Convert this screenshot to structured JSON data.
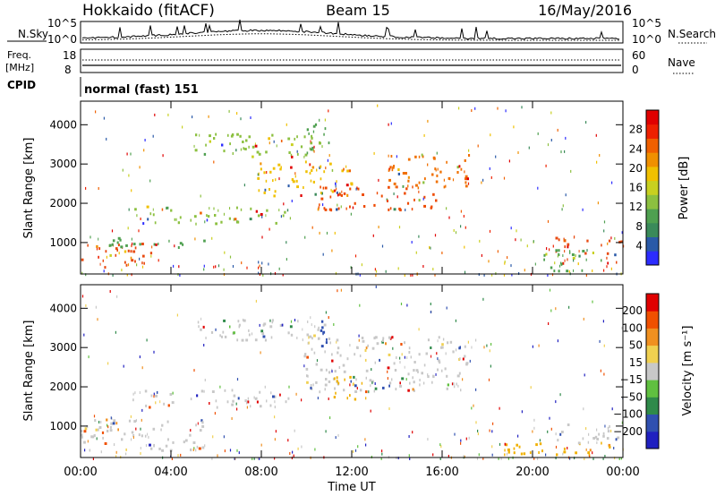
{
  "header": {
    "station": "Hokkaido (fitACF)",
    "beam": "Beam 15",
    "date": "16/May/2016"
  },
  "noise_panel": {
    "left_label": "N.Sky",
    "right_label": "N.Search",
    "left_tick_top": "10^5",
    "left_tick_bottom": "10^0",
    "right_tick_top": "10^5",
    "right_tick_bottom": "10^0"
  },
  "freq_panel": {
    "left_label": "Freq.",
    "left_unit": "[MHz]",
    "right_label": "Nave",
    "left_tick_top": "18",
    "left_tick_bottom": "8",
    "right_tick_top": "60",
    "right_tick_bottom": "0"
  },
  "cpid_panel": {
    "label": "CPID",
    "value": "normal (fast) 151"
  },
  "chart_data": [
    {
      "type": "heatmap",
      "ylabel": "Slant Range [km]",
      "xlabel": "",
      "y_ticks": [
        "1000",
        "2000",
        "3000",
        "4000"
      ],
      "ylim": [
        200,
        4600
      ],
      "xlim": [
        0,
        24
      ],
      "colorbar": {
        "label": "Power [dB]",
        "ticks": [
          "4",
          "8",
          "12",
          "16",
          "20",
          "24",
          "28"
        ],
        "colors": [
          "#2c2cff",
          "#2a5aa8",
          "#3a8a5a",
          "#4fa050",
          "#8cc040",
          "#c8d020",
          "#f0c000",
          "#f09000",
          "#f06000",
          "#ee2000",
          "#e00000"
        ]
      },
      "bands": [
        {
          "t0": 0.0,
          "t1": 3.4,
          "r0": 400,
          "r1": 1000,
          "color": "#e84a10"
        },
        {
          "t0": 0.0,
          "t1": 5.6,
          "r0": 900,
          "r1": 1150,
          "color": "#4fa050"
        },
        {
          "t0": 2.2,
          "t1": 9.2,
          "r0": 1500,
          "r1": 1950,
          "color": "#8cc040"
        },
        {
          "t0": 5.0,
          "t1": 10.8,
          "r0": 3200,
          "r1": 3800,
          "color": "#8cc040"
        },
        {
          "t0": 10.4,
          "t1": 15.8,
          "r0": 1850,
          "r1": 2500,
          "color": "#ee4a00"
        },
        {
          "t0": 13.6,
          "t1": 17.3,
          "r0": 2400,
          "r1": 3300,
          "color": "#f07000"
        },
        {
          "t0": 7.8,
          "t1": 12.0,
          "r0": 2200,
          "r1": 3100,
          "color": "#f0c000"
        },
        {
          "t0": 10.0,
          "t1": 11.0,
          "r0": 3300,
          "r1": 4100,
          "color": "#4fa050"
        },
        {
          "t0": 21.0,
          "t1": 24.0,
          "r0": 500,
          "r1": 1200,
          "color": "#e84a10"
        },
        {
          "t0": 19.8,
          "t1": 22.5,
          "r0": 300,
          "r1": 900,
          "color": "#4fa050"
        }
      ]
    },
    {
      "type": "heatmap",
      "ylabel": "Slant Range [km]",
      "xlabel": "Time UT",
      "x_ticks": [
        "00:00",
        "04:00",
        "08:00",
        "12:00",
        "16:00",
        "20:00",
        "00:00"
      ],
      "y_ticks": [
        "1000",
        "2000",
        "3000",
        "4000"
      ],
      "ylim": [
        200,
        4600
      ],
      "xlim": [
        0,
        24
      ],
      "colorbar": {
        "label": "Velocity [m s⁻¹]",
        "ticks": [
          "200",
          "100",
          "50",
          "15",
          "−15",
          "−50",
          "−100",
          "−200"
        ],
        "colors": [
          "#2020c0",
          "#3050b0",
          "#2f8a4a",
          "#60c040",
          "#c8c8c8",
          "#f0d050",
          "#f09020",
          "#f05000",
          "#e00000"
        ]
      },
      "bands": [
        {
          "t0": 0.0,
          "t1": 5.6,
          "r0": 400,
          "r1": 1200,
          "color": "#c8c8c8"
        },
        {
          "t0": 2.2,
          "t1": 9.2,
          "r0": 1500,
          "r1": 1950,
          "color": "#c8c8c8"
        },
        {
          "t0": 5.0,
          "t1": 10.8,
          "r0": 3200,
          "r1": 3800,
          "color": "#c8c8c8"
        },
        {
          "t0": 9.8,
          "t1": 17.3,
          "r0": 1900,
          "r1": 3300,
          "color": "#c8c8c8"
        },
        {
          "t0": 11.0,
          "t1": 12.6,
          "r0": 1700,
          "r1": 2300,
          "color": "#f0b000"
        },
        {
          "t0": 10.6,
          "t1": 11.0,
          "r0": 2800,
          "r1": 3800,
          "color": "#3050b0"
        },
        {
          "t0": 18.5,
          "t1": 24.0,
          "r0": 300,
          "r1": 600,
          "color": "#f0b000"
        },
        {
          "t0": 21.0,
          "t1": 24.0,
          "r0": 600,
          "r1": 1100,
          "color": "#c8c8c8"
        }
      ]
    }
  ]
}
